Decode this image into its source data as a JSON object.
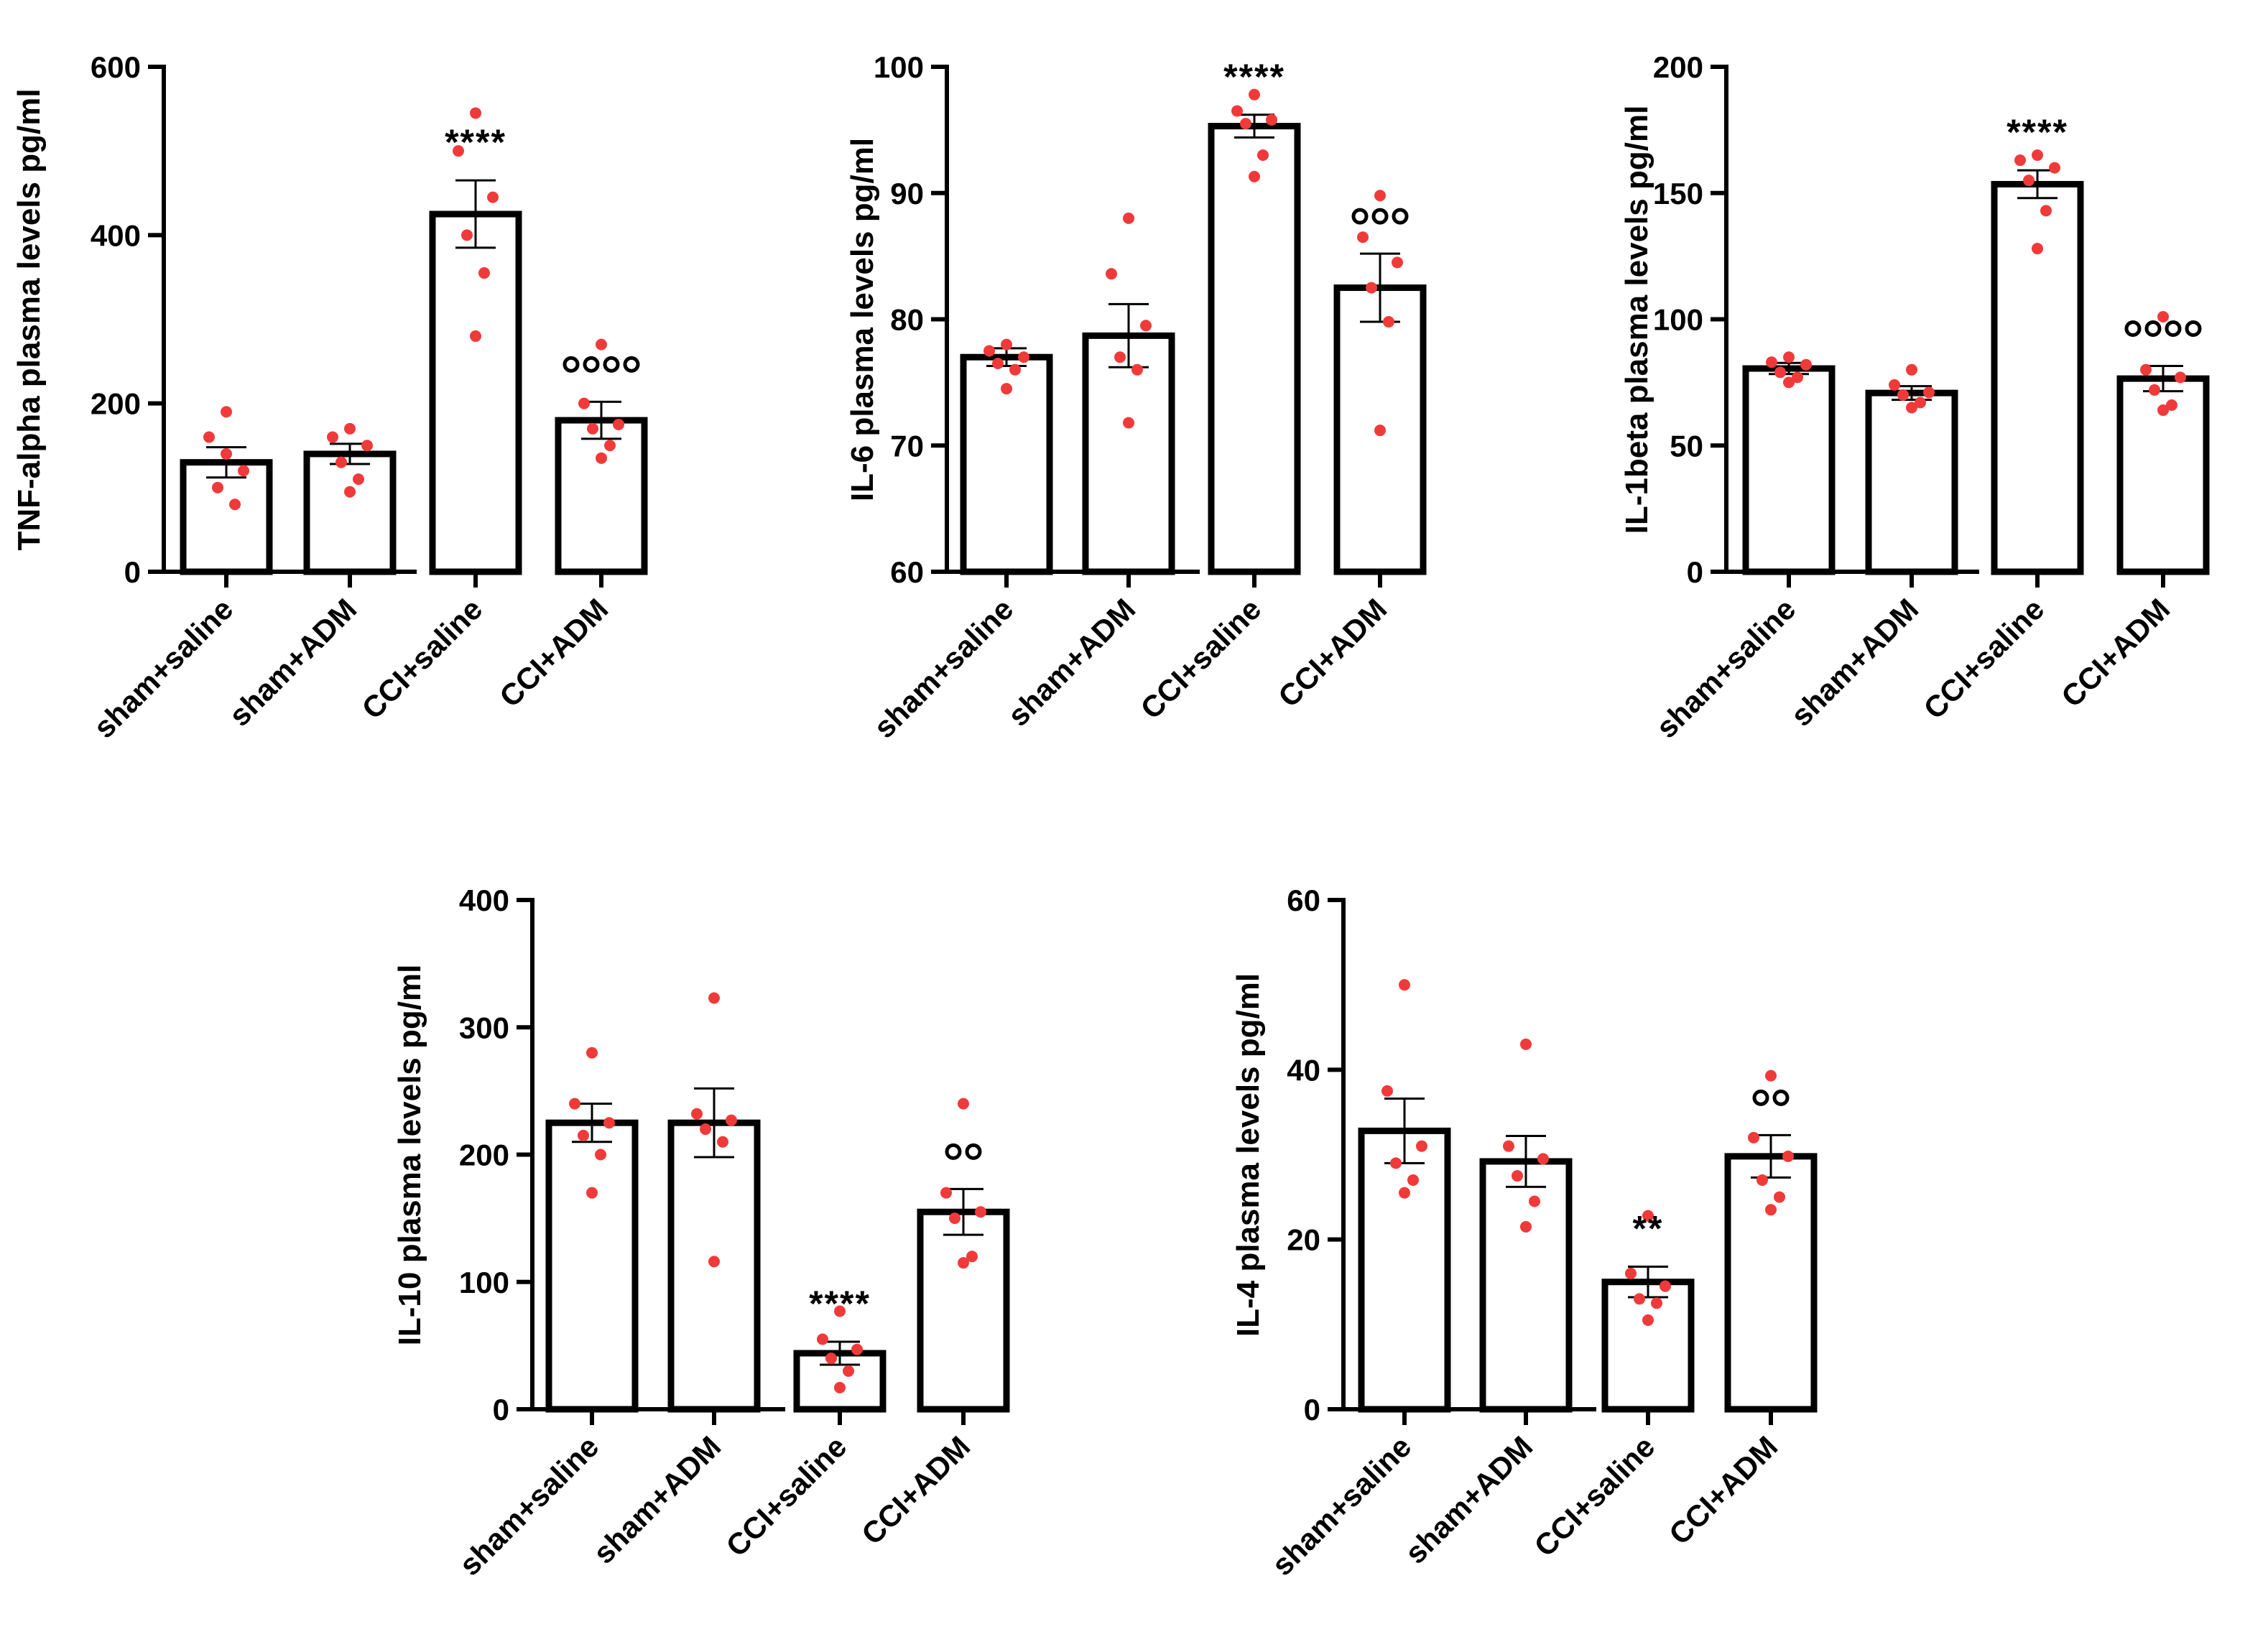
{
  "figure": {
    "dot_color": "#f03a3a",
    "bar_fill": "#ffffff",
    "ink_color": "#000000",
    "background": "#ffffff"
  },
  "chart_data": [
    {
      "type": "bar",
      "ylabel": "TNF-alpha plasma levels pg/ml",
      "categories": [
        "sham+saline",
        "sham+ADM",
        "CCI+saline",
        "CCI+ADM"
      ],
      "values": [
        130,
        140,
        425,
        180
      ],
      "sem": [
        18,
        12,
        40,
        22
      ],
      "points": [
        [
          190,
          160,
          120,
          100,
          80,
          140
        ],
        [
          170,
          160,
          150,
          130,
          110,
          95
        ],
        [
          545,
          500,
          445,
          400,
          355,
          280
        ],
        [
          270,
          200,
          175,
          170,
          150,
          135
        ]
      ],
      "ylim": [
        0,
        600
      ],
      "yticks": [
        0,
        200,
        400,
        600
      ],
      "yticklabels": [
        "0",
        "200",
        "400",
        "600"
      ],
      "annotations": [
        "",
        "",
        "****",
        "oooo"
      ]
    },
    {
      "type": "bar",
      "ylabel": "IL-6 plasma levels pg/ml",
      "categories": [
        "sham+saline",
        "sham+ADM",
        "CCI+saline",
        "CCI+ADM"
      ],
      "values": [
        77,
        78.7,
        95.3,
        82.5
      ],
      "sem": [
        0.7,
        2.5,
        0.9,
        2.7
      ],
      "points": [
        [
          78,
          77.5,
          77,
          76.5,
          76,
          74.5
        ],
        [
          88,
          83.6,
          79.5,
          77,
          76,
          71.8
        ],
        [
          97.8,
          96.5,
          95.8,
          95.5,
          93,
          91.3
        ],
        [
          89.8,
          86.5,
          84.5,
          82.5,
          79.8,
          71.2
        ]
      ],
      "ylim": [
        60,
        100
      ],
      "yticks": [
        60,
        70,
        80,
        90,
        100
      ],
      "yticklabels": [
        "60",
        "70",
        "80",
        "90",
        "100"
      ],
      "annotations": [
        "",
        "",
        "****",
        "ooo"
      ]
    },
    {
      "type": "bar",
      "ylabel": "IL-1beta plasma levels pg/ml",
      "categories": [
        "sham+saline",
        "sham+ADM",
        "CCI+saline",
        "CCI+ADM"
      ],
      "values": [
        80.5,
        70.8,
        153.5,
        76.5
      ],
      "sem": [
        2.2,
        2.7,
        5.5,
        5
      ],
      "points": [
        [
          85,
          83,
          82,
          79,
          77,
          75
        ],
        [
          80,
          74,
          71,
          70,
          67,
          65
        ],
        [
          165,
          163,
          160,
          155,
          143,
          128
        ],
        [
          101,
          80,
          77,
          72,
          66,
          64
        ]
      ],
      "ylim": [
        0,
        200
      ],
      "yticks": [
        0,
        50,
        100,
        150,
        200
      ],
      "yticklabels": [
        "0",
        "50",
        "100",
        "150",
        "200"
      ],
      "annotations": [
        "",
        "",
        "****",
        "oooo"
      ]
    },
    {
      "type": "bar",
      "ylabel": "IL-10 plasma levels pg/ml",
      "categories": [
        "sham+saline",
        "sham+ADM",
        "CCI+saline",
        "CCI+ADM"
      ],
      "values": [
        225,
        225,
        44,
        155
      ],
      "sem": [
        15,
        27,
        9,
        18
      ],
      "points": [
        [
          280,
          240,
          225,
          215,
          200,
          170
        ],
        [
          323,
          232,
          227,
          220,
          210,
          116
        ],
        [
          77,
          55,
          47,
          40,
          30,
          17
        ],
        [
          240,
          170,
          155,
          150,
          120,
          115
        ]
      ],
      "ylim": [
        0,
        400
      ],
      "yticks": [
        0,
        100,
        200,
        300,
        400
      ],
      "yticklabels": [
        "0",
        "100",
        "200",
        "300",
        "400"
      ],
      "annotations": [
        "",
        "",
        "****",
        "oo"
      ]
    },
    {
      "type": "bar",
      "ylabel": "IL-4 plasma levels pg/ml",
      "categories": [
        "sham+saline",
        "sham+ADM",
        "CCI+saline",
        "CCI+ADM"
      ],
      "values": [
        32.8,
        29.2,
        15,
        29.8
      ],
      "sem": [
        3.8,
        3,
        1.8,
        2.5
      ],
      "points": [
        [
          50,
          37.5,
          31,
          29,
          27,
          25.5
        ],
        [
          43,
          31,
          29.5,
          27.5,
          24.5,
          21.5
        ],
        [
          22.8,
          16,
          14.5,
          13,
          12.5,
          10.5
        ],
        [
          39.3,
          32,
          29.8,
          27,
          25,
          23.5
        ]
      ],
      "ylim": [
        0,
        60
      ],
      "yticks": [
        0,
        20,
        40,
        60
      ],
      "yticklabels": [
        "0",
        "20",
        "40",
        "60"
      ],
      "annotations": [
        "",
        "",
        "**",
        "oo"
      ]
    }
  ]
}
